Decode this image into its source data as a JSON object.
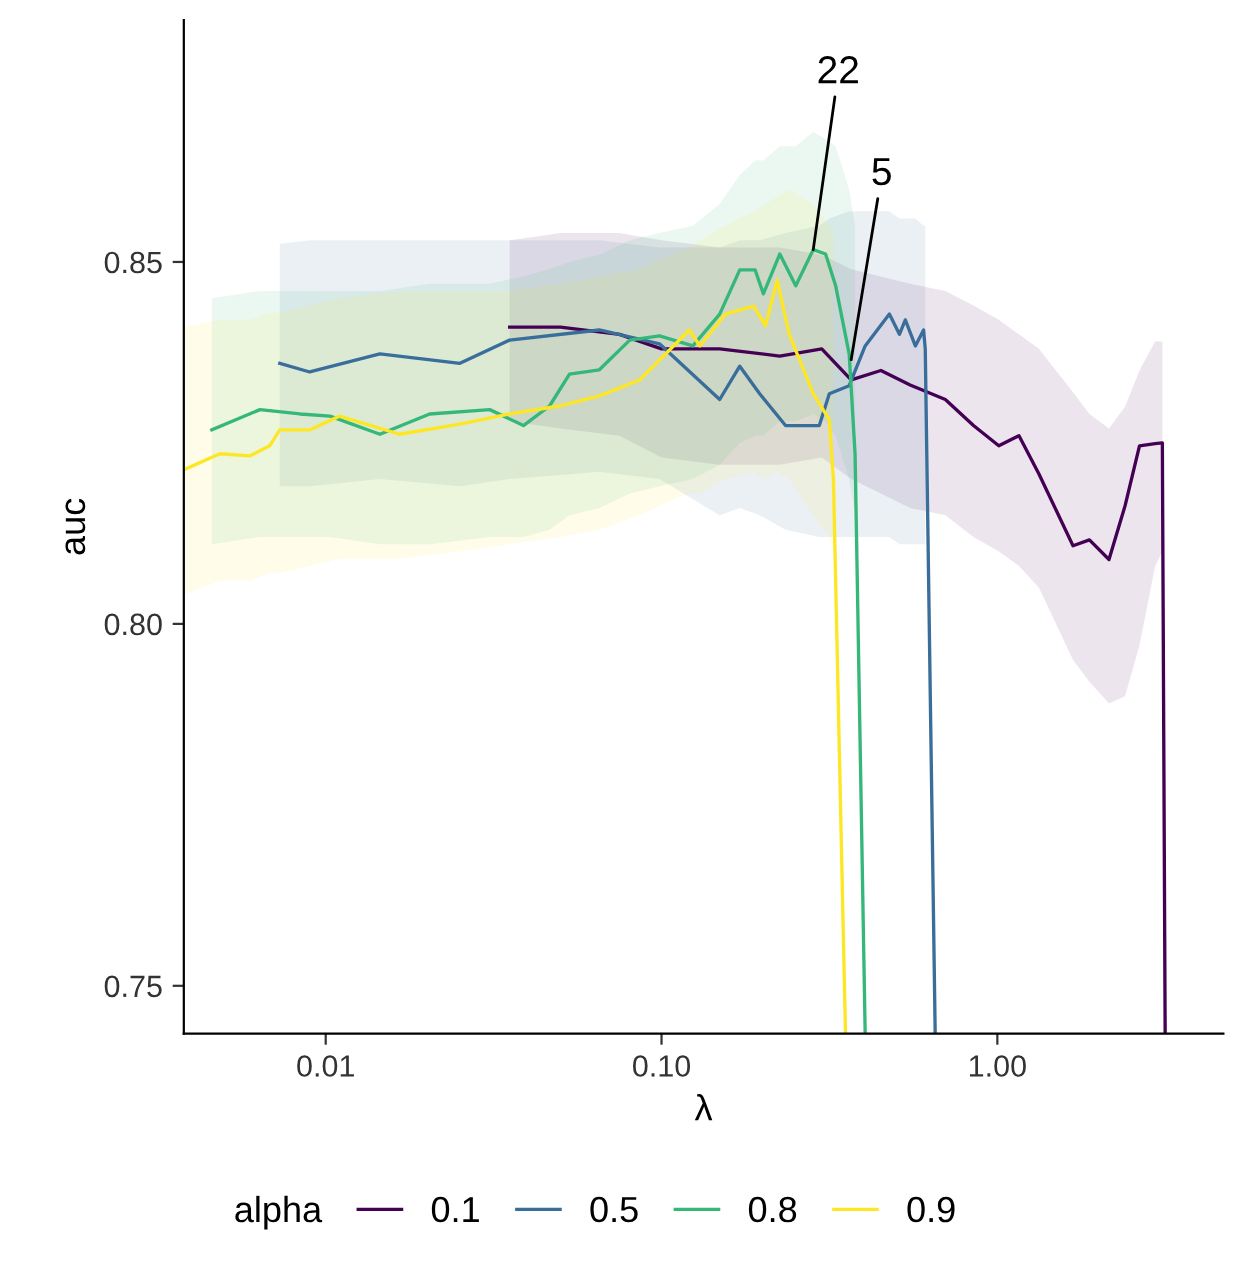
{
  "chart_data": {
    "type": "line",
    "xlabel": "λ",
    "ylabel": "auc",
    "legend_title": "alpha",
    "legend": "bottom",
    "log": "x",
    "line_style": "solid",
    "xlim": [
      0.00378,
      4.71
    ],
    "ylim": [
      0.7434,
      0.8834
    ],
    "xticks": [
      {
        "value": 0.01,
        "label": "0.01"
      },
      {
        "value": 0.1,
        "label": "0.10"
      },
      {
        "value": 1,
        "label": "1.00"
      }
    ],
    "yticks": [
      0.75,
      {
        "value": 0.8,
        "label": "0.80"
      },
      0.85
    ],
    "annotations": [
      {
        "text": "22",
        "x": 0.283,
        "y": 0.8517
      },
      {
        "text": "5",
        "x": 0.367,
        "y": 0.8365
      }
    ],
    "series": [
      {
        "name": "0.1",
        "color": "#440154",
        "x": [
          0.0353,
          0.05,
          0.075,
          0.1,
          0.149,
          0.225,
          0.3,
          0.367,
          0.45,
          0.55,
          0.7,
          0.849,
          1.01,
          1.16,
          1.33,
          1.68,
          1.88,
          2.15,
          2.4,
          2.65,
          2.95,
          3.1,
          3.16
        ],
        "values": [
          0.841,
          0.841,
          0.84,
          0.838,
          0.838,
          0.837,
          0.838,
          0.8337,
          0.835,
          0.833,
          0.831,
          0.8274,
          0.8246,
          0.826,
          0.8207,
          0.8108,
          0.8116,
          0.8089,
          0.8163,
          0.8246,
          0.8249,
          0.825,
          0.7434
        ],
        "upper": [
          0.853,
          0.854,
          0.854,
          0.853,
          0.852,
          0.852,
          0.851,
          0.849,
          0.848,
          0.847,
          0.846,
          0.844,
          0.842,
          0.84,
          0.838,
          0.832,
          0.829,
          0.827,
          0.83,
          0.835,
          0.839,
          0.839,
          null
        ],
        "lower": [
          0.828,
          0.827,
          0.826,
          0.823,
          0.822,
          0.822,
          0.823,
          0.82,
          0.818,
          0.816,
          0.815,
          0.812,
          0.81,
          0.808,
          0.805,
          0.795,
          0.792,
          0.789,
          0.79,
          0.797,
          0.808,
          0.81,
          null
        ]
      },
      {
        "name": "0.5",
        "color": "#3a6e9a",
        "x": [
          0.0073,
          0.00896,
          0.0145,
          0.0251,
          0.0353,
          0.0653,
          0.0986,
          0.149,
          0.171,
          0.196,
          0.234,
          0.295,
          0.316,
          0.362,
          0.404,
          0.477,
          0.511,
          0.532,
          0.57,
          0.603,
          0.61,
          0.653
        ],
        "values": [
          0.836,
          0.8348,
          0.8373,
          0.836,
          0.8392,
          0.8406,
          0.8387,
          0.831,
          0.8356,
          0.8318,
          0.8274,
          0.8274,
          0.8318,
          0.8329,
          0.8384,
          0.8428,
          0.84,
          0.842,
          0.8384,
          0.8406,
          0.838,
          0.7434
        ],
        "upper": [
          0.8525,
          0.853,
          0.853,
          0.853,
          0.853,
          0.853,
          0.852,
          0.852,
          0.853,
          0.853,
          0.854,
          0.855,
          0.856,
          0.857,
          0.857,
          0.857,
          0.856,
          0.856,
          0.856,
          0.855,
          0.855,
          null
        ],
        "lower": [
          0.819,
          0.819,
          0.82,
          0.819,
          0.82,
          0.821,
          0.82,
          0.815,
          0.816,
          0.815,
          0.813,
          0.812,
          0.812,
          0.812,
          0.812,
          0.812,
          0.811,
          0.811,
          0.811,
          0.811,
          0.811,
          null
        ]
      },
      {
        "name": "0.8",
        "color": "#35b779",
        "x": [
          0.00458,
          0.00637,
          0.00838,
          0.0103,
          0.0145,
          0.0204,
          0.0308,
          0.0388,
          0.0464,
          0.0532,
          0.0653,
          0.0804,
          0.0986,
          0.124,
          0.149,
          0.171,
          0.19,
          0.201,
          0.225,
          0.251,
          0.283,
          0.308,
          0.33,
          0.362,
          0.377,
          0.404
        ],
        "values": [
          0.8268,
          0.8296,
          0.829,
          0.8287,
          0.8262,
          0.829,
          0.8296,
          0.8274,
          0.8301,
          0.8345,
          0.8351,
          0.8392,
          0.8398,
          0.8384,
          0.8428,
          0.8489,
          0.8489,
          0.8456,
          0.8511,
          0.8467,
          0.8517,
          0.8511,
          0.8467,
          0.8373,
          0.8235,
          0.7434
        ],
        "upper": [
          0.845,
          0.846,
          0.846,
          0.846,
          0.846,
          0.847,
          0.847,
          0.848,
          0.849,
          0.85,
          0.851,
          0.853,
          0.854,
          0.855,
          0.858,
          0.862,
          0.864,
          0.864,
          0.866,
          0.866,
          0.868,
          0.867,
          0.866,
          0.86,
          0.855,
          null
        ],
        "lower": [
          0.811,
          0.812,
          0.812,
          0.812,
          0.811,
          0.811,
          0.812,
          0.812,
          0.813,
          0.815,
          0.816,
          0.818,
          0.819,
          0.82,
          0.822,
          0.825,
          0.826,
          0.826,
          0.828,
          0.828,
          0.829,
          0.828,
          0.826,
          0.82,
          0.815,
          null
        ]
      },
      {
        "name": "0.9",
        "color": "#fde725",
        "x": [
          0.00378,
          0.00484,
          0.00594,
          0.00681,
          0.0073,
          0.00896,
          0.011,
          0.0166,
          0.0251,
          0.0353,
          0.0497,
          0.0653,
          0.0861,
          0.106,
          0.121,
          0.13,
          0.155,
          0.188,
          0.204,
          0.221,
          0.24,
          0.283,
          0.316,
          0.325,
          0.353
        ],
        "values": [
          0.8213,
          0.8235,
          0.8232,
          0.8246,
          0.8268,
          0.8268,
          0.8287,
          0.8262,
          0.8276,
          0.829,
          0.8301,
          0.8315,
          0.8337,
          0.8379,
          0.8406,
          0.8384,
          0.8428,
          0.8439,
          0.8412,
          0.8475,
          0.84,
          0.8318,
          0.8282,
          0.82,
          0.7434
        ],
        "upper": [
          0.841,
          0.842,
          0.842,
          0.843,
          0.843,
          0.844,
          0.845,
          0.846,
          0.846,
          0.846,
          0.847,
          0.848,
          0.849,
          0.851,
          0.852,
          0.853,
          0.855,
          0.857,
          0.858,
          0.859,
          0.86,
          0.858,
          0.855,
          0.854,
          null
        ],
        "lower": [
          0.804,
          0.806,
          0.806,
          0.807,
          0.807,
          0.808,
          0.809,
          0.809,
          0.81,
          0.811,
          0.812,
          0.813,
          0.815,
          0.817,
          0.818,
          0.818,
          0.82,
          0.821,
          0.82,
          0.821,
          0.82,
          0.815,
          0.812,
          0.81,
          null
        ]
      }
    ]
  }
}
